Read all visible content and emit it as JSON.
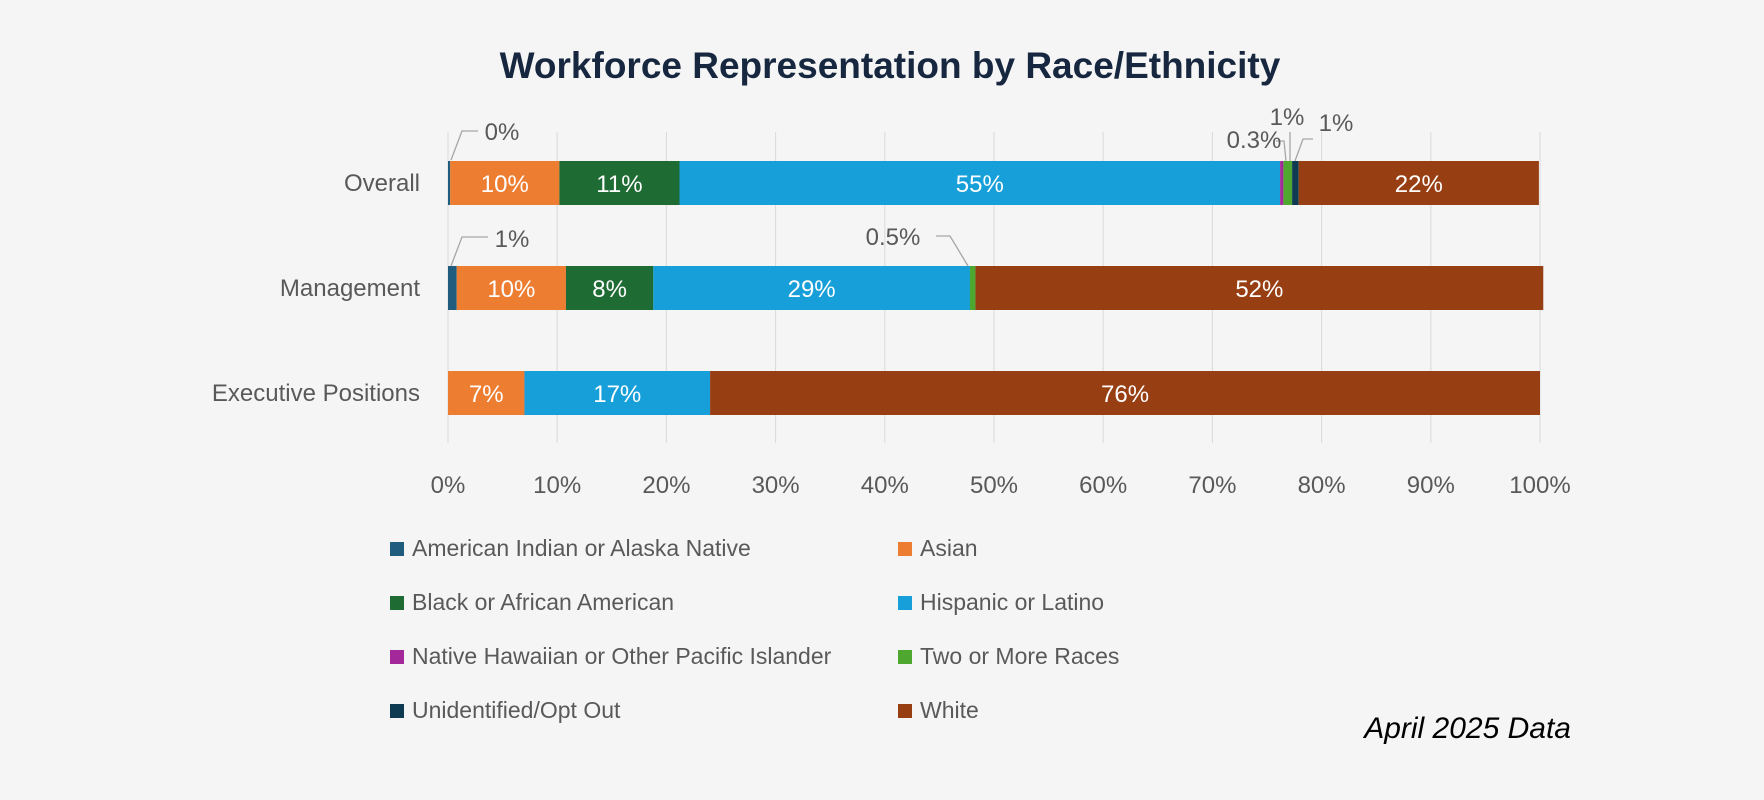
{
  "chart_data": {
    "type": "bar",
    "orientation": "horizontal",
    "stacked": "percent",
    "title": "Workforce Representation by Race/Ethnicity",
    "categories": [
      "Overall",
      "Management",
      "Executive Positions"
    ],
    "series": [
      {
        "name": "American Indian or Alaska Native",
        "color": "#1f5c7e",
        "values": [
          0.2,
          0.8,
          0
        ]
      },
      {
        "name": "Asian",
        "color": "#ed7d31",
        "values": [
          10,
          10,
          7
        ]
      },
      {
        "name": "Black or African American",
        "color": "#1e6b33",
        "values": [
          11,
          8,
          0
        ]
      },
      {
        "name": "Hispanic or Latino",
        "color": "#169fd9",
        "values": [
          55,
          29,
          17
        ]
      },
      {
        "name": "Native Hawaiian or Other Pacific Islander",
        "color": "#a3289a",
        "values": [
          0.3,
          0,
          0
        ]
      },
      {
        "name": "Two or More Races",
        "color": "#4ea72e",
        "values": [
          0.8,
          0.5,
          0
        ]
      },
      {
        "name": "Unidentified/Opt Out",
        "color": "#0e3a52",
        "values": [
          0.6,
          0,
          0
        ]
      },
      {
        "name": "White",
        "color": "#973e13",
        "values": [
          22,
          52,
          76
        ]
      }
    ],
    "data_labels": [
      [
        "0%",
        "10%",
        "11%",
        "55%",
        "0.3%",
        "1%",
        "1%",
        "22%"
      ],
      [
        "1%",
        "10%",
        "8%",
        "29%",
        "",
        "0.5%",
        "",
        "52%"
      ],
      [
        "",
        "7%",
        "",
        "17%",
        "",
        "",
        "",
        "76%"
      ]
    ],
    "xlim": [
      0,
      100
    ],
    "x_ticks": [
      "0%",
      "10%",
      "20%",
      "30%",
      "40%",
      "50%",
      "60%",
      "70%",
      "80%",
      "90%",
      "100%"
    ],
    "xlabel": "",
    "ylabel": "",
    "grid": true,
    "legend_position": "bottom"
  },
  "caption": "April 2025 Data"
}
